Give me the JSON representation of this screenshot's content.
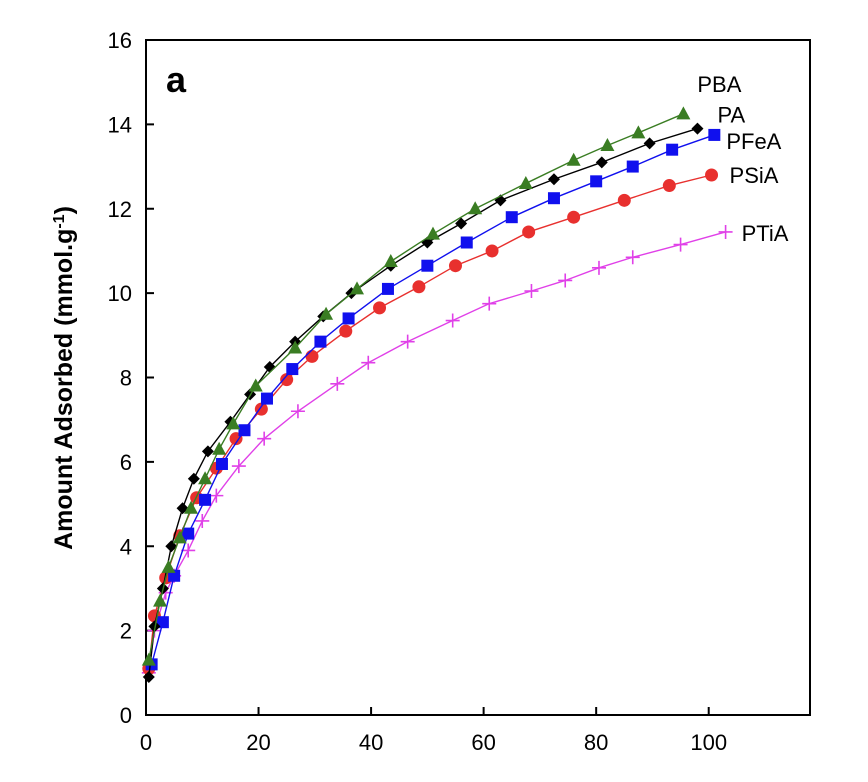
{
  "chart_data": {
    "type": "line",
    "panel_label": "a",
    "xlabel": "",
    "ylabel_main": "Amount Adsorbed (mmol.g",
    "ylabel_sup": "-1",
    "ylabel_close": ")",
    "xlim": [
      0,
      118
    ],
    "ylim": [
      0,
      16
    ],
    "x_ticks": [
      0,
      20,
      40,
      60,
      80,
      100
    ],
    "y_ticks": [
      0,
      2,
      4,
      6,
      8,
      10,
      12,
      14,
      16
    ],
    "grid": false,
    "series": [
      {
        "name": "PBA",
        "color": "#3a7d23",
        "marker": "triangle",
        "x": [
          0.5,
          2.5,
          4,
          6,
          8,
          10.5,
          13,
          15.5,
          19.5,
          26.5,
          32,
          37.5,
          43.5,
          51,
          58.5,
          67.5,
          76,
          82,
          87.5,
          95.5
        ],
        "y": [
          1.3,
          2.7,
          3.5,
          4.2,
          4.9,
          5.6,
          6.3,
          6.9,
          7.8,
          8.7,
          9.5,
          10.1,
          10.75,
          11.4,
          12.0,
          12.6,
          13.15,
          13.5,
          13.8,
          14.25
        ]
      },
      {
        "name": "PA",
        "color": "#000000",
        "marker": "diamond",
        "x": [
          0.5,
          1.5,
          3,
          4.5,
          6.5,
          8.5,
          11,
          15,
          18.5,
          22,
          26.5,
          31.5,
          36.5,
          43.5,
          50,
          56,
          63,
          72.5,
          81,
          89.5,
          98
        ],
        "y": [
          0.9,
          2.1,
          3.0,
          4.0,
          4.9,
          5.6,
          6.25,
          6.95,
          7.6,
          8.25,
          8.85,
          9.45,
          10.0,
          10.65,
          11.2,
          11.65,
          12.2,
          12.7,
          13.1,
          13.55,
          13.9
        ]
      },
      {
        "name": "PFeA",
        "color": "#1010ee",
        "marker": "square",
        "x": [
          1,
          3,
          5,
          7.5,
          10.5,
          13.5,
          17.5,
          21.5,
          26,
          31,
          36,
          43,
          50,
          57,
          65,
          72.5,
          80,
          86.5,
          93.5,
          101
        ],
        "y": [
          1.2,
          2.2,
          3.3,
          4.3,
          5.1,
          5.95,
          6.75,
          7.5,
          8.2,
          8.85,
          9.4,
          10.1,
          10.65,
          11.2,
          11.8,
          12.25,
          12.65,
          13.0,
          13.4,
          13.75
        ]
      },
      {
        "name": "PSiA",
        "color": "#e8302e",
        "marker": "circle",
        "x": [
          0.5,
          1.5,
          3.5,
          6,
          9,
          12.5,
          16,
          20.5,
          25,
          29.5,
          35.5,
          41.5,
          48.5,
          55,
          61.5,
          68,
          76,
          85,
          93,
          100.5
        ],
        "y": [
          1.1,
          2.35,
          3.25,
          4.25,
          5.15,
          5.85,
          6.55,
          7.25,
          7.95,
          8.5,
          9.1,
          9.65,
          10.15,
          10.65,
          11.0,
          11.45,
          11.8,
          12.2,
          12.55,
          12.8
        ]
      },
      {
        "name": "PTiA",
        "color": "#e040e8",
        "marker": "plus",
        "x": [
          0.5,
          1.5,
          3.5,
          5,
          7.5,
          10,
          12.5,
          16.5,
          21,
          27,
          34,
          39.5,
          46.5,
          54.5,
          61,
          68.5,
          74.5,
          80.5,
          86.5,
          95,
          103
        ],
        "y": [
          1.0,
          2.0,
          2.9,
          3.3,
          3.9,
          4.6,
          5.2,
          5.9,
          6.55,
          7.2,
          7.85,
          8.35,
          8.85,
          9.35,
          9.75,
          10.05,
          10.3,
          10.6,
          10.85,
          11.15,
          11.45
        ]
      }
    ]
  }
}
